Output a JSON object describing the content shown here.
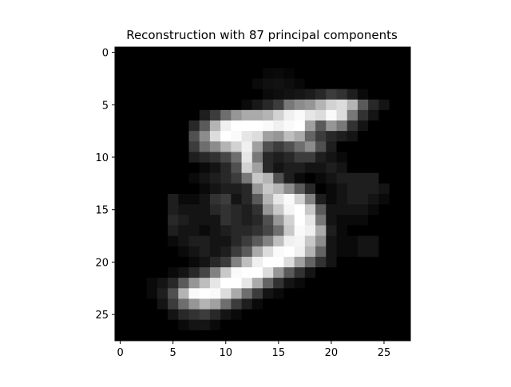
{
  "chart_data": {
    "type": "heatmap",
    "title": "Reconstruction with 87 principal components",
    "colormap": "gray",
    "x_ticks": [
      "0",
      "5",
      "10",
      "15",
      "20",
      "25"
    ],
    "y_ticks": [
      "0",
      "5",
      "10",
      "15",
      "20",
      "25"
    ],
    "x_tick_values": [
      0,
      5,
      10,
      15,
      20,
      25
    ],
    "y_tick_values": [
      0,
      5,
      10,
      15,
      20,
      25
    ],
    "xlim": [
      -0.5,
      27.5
    ],
    "ylim": [
      27.5,
      -0.5
    ],
    "grid": false,
    "rows": 28,
    "cols": 28,
    "value_range": [
      0,
      255
    ],
    "pixels": [
      [
        0,
        0,
        0,
        0,
        0,
        0,
        0,
        0,
        0,
        0,
        0,
        0,
        0,
        0,
        0,
        0,
        0,
        0,
        0,
        0,
        0,
        0,
        0,
        0,
        0,
        0,
        0,
        0
      ],
      [
        0,
        0,
        0,
        0,
        0,
        0,
        0,
        0,
        0,
        0,
        0,
        0,
        0,
        0,
        0,
        0,
        0,
        0,
        0,
        0,
        0,
        0,
        0,
        0,
        0,
        0,
        0,
        0
      ],
      [
        0,
        0,
        0,
        0,
        0,
        0,
        0,
        0,
        0,
        0,
        0,
        0,
        0,
        0,
        8,
        10,
        6,
        0,
        0,
        0,
        0,
        0,
        0,
        0,
        0,
        0,
        0,
        0
      ],
      [
        0,
        0,
        0,
        0,
        0,
        0,
        0,
        0,
        0,
        0,
        0,
        0,
        0,
        10,
        16,
        18,
        14,
        8,
        0,
        0,
        0,
        0,
        0,
        0,
        0,
        0,
        0,
        0
      ],
      [
        0,
        0,
        0,
        0,
        0,
        0,
        0,
        0,
        0,
        0,
        0,
        0,
        0,
        0,
        10,
        14,
        18,
        22,
        28,
        40,
        60,
        50,
        30,
        10,
        0,
        0,
        0,
        0
      ],
      [
        0,
        0,
        0,
        0,
        0,
        0,
        0,
        0,
        0,
        0,
        0,
        0,
        10,
        24,
        40,
        60,
        120,
        140,
        150,
        180,
        210,
        220,
        180,
        90,
        40,
        20,
        0,
        0
      ],
      [
        0,
        0,
        0,
        0,
        0,
        0,
        0,
        0,
        30,
        60,
        110,
        150,
        170,
        170,
        180,
        210,
        240,
        250,
        230,
        220,
        250,
        220,
        120,
        50,
        20,
        0,
        0,
        0
      ],
      [
        0,
        0,
        0,
        0,
        0,
        0,
        0,
        40,
        90,
        180,
        240,
        255,
        255,
        255,
        250,
        240,
        250,
        255,
        160,
        90,
        150,
        120,
        50,
        20,
        0,
        0,
        0,
        0
      ],
      [
        0,
        0,
        0,
        0,
        0,
        0,
        0,
        80,
        140,
        220,
        255,
        250,
        230,
        220,
        160,
        150,
        190,
        170,
        100,
        60,
        40,
        30,
        20,
        0,
        0,
        0,
        0,
        0
      ],
      [
        0,
        0,
        0,
        0,
        0,
        0,
        0,
        60,
        110,
        140,
        180,
        210,
        240,
        160,
        80,
        60,
        80,
        110,
        140,
        80,
        30,
        0,
        0,
        0,
        0,
        0,
        0,
        0
      ],
      [
        0,
        0,
        0,
        0,
        0,
        0,
        0,
        30,
        40,
        50,
        70,
        110,
        230,
        120,
        40,
        30,
        40,
        60,
        60,
        30,
        20,
        10,
        0,
        0,
        0,
        0,
        0,
        0
      ],
      [
        0,
        0,
        0,
        0,
        0,
        0,
        0,
        0,
        10,
        20,
        40,
        80,
        210,
        160,
        40,
        20,
        30,
        30,
        20,
        20,
        30,
        20,
        0,
        0,
        0,
        0,
        0,
        0
      ],
      [
        0,
        0,
        0,
        0,
        0,
        0,
        0,
        10,
        20,
        30,
        40,
        60,
        120,
        200,
        180,
        80,
        30,
        10,
        0,
        10,
        20,
        30,
        30,
        30,
        30,
        0,
        0,
        0
      ],
      [
        0,
        0,
        0,
        0,
        0,
        0,
        0,
        0,
        10,
        20,
        30,
        30,
        40,
        150,
        200,
        180,
        140,
        90,
        40,
        0,
        10,
        20,
        30,
        30,
        30,
        20,
        0,
        0
      ],
      [
        0,
        0,
        0,
        0,
        0,
        30,
        10,
        10,
        20,
        50,
        60,
        20,
        40,
        90,
        180,
        230,
        250,
        210,
        130,
        30,
        10,
        20,
        30,
        30,
        20,
        10,
        0,
        0
      ],
      [
        0,
        0,
        0,
        0,
        0,
        30,
        20,
        20,
        20,
        40,
        50,
        40,
        30,
        50,
        150,
        200,
        245,
        255,
        200,
        90,
        20,
        20,
        20,
        20,
        10,
        0,
        0,
        0
      ],
      [
        0,
        0,
        0,
        0,
        0,
        40,
        30,
        20,
        20,
        20,
        50,
        40,
        30,
        40,
        80,
        150,
        210,
        255,
        230,
        120,
        20,
        10,
        10,
        10,
        0,
        0,
        0,
        0
      ],
      [
        0,
        0,
        0,
        0,
        0,
        30,
        20,
        20,
        10,
        20,
        30,
        40,
        40,
        50,
        70,
        110,
        200,
        250,
        240,
        170,
        30,
        10,
        0,
        0,
        0,
        0,
        0,
        0
      ],
      [
        0,
        0,
        0,
        0,
        0,
        10,
        20,
        30,
        30,
        20,
        20,
        40,
        60,
        90,
        130,
        190,
        240,
        245,
        200,
        140,
        20,
        10,
        10,
        20,
        20,
        0,
        0,
        0
      ],
      [
        0,
        0,
        0,
        0,
        0,
        0,
        10,
        20,
        30,
        20,
        30,
        60,
        90,
        170,
        220,
        250,
        255,
        240,
        180,
        100,
        20,
        10,
        10,
        20,
        20,
        0,
        0,
        0
      ],
      [
        0,
        0,
        0,
        0,
        0,
        0,
        0,
        10,
        20,
        40,
        60,
        130,
        190,
        240,
        255,
        255,
        220,
        160,
        100,
        50,
        20,
        0,
        0,
        0,
        0,
        0,
        0,
        0
      ],
      [
        0,
        0,
        0,
        0,
        0,
        10,
        20,
        40,
        70,
        130,
        200,
        250,
        255,
        255,
        220,
        150,
        90,
        50,
        20,
        0,
        0,
        0,
        0,
        0,
        0,
        0,
        0,
        0
      ],
      [
        0,
        0,
        0,
        10,
        20,
        40,
        90,
        150,
        190,
        230,
        255,
        255,
        230,
        170,
        100,
        50,
        20,
        10,
        0,
        0,
        0,
        0,
        0,
        0,
        0,
        0,
        0,
        0
      ],
      [
        0,
        0,
        0,
        10,
        30,
        80,
        180,
        250,
        255,
        250,
        220,
        170,
        110,
        60,
        20,
        10,
        0,
        0,
        0,
        0,
        0,
        0,
        0,
        0,
        0,
        0,
        0,
        0
      ],
      [
        0,
        0,
        0,
        0,
        20,
        60,
        110,
        150,
        180,
        160,
        110,
        60,
        30,
        10,
        0,
        0,
        0,
        0,
        0,
        0,
        0,
        0,
        0,
        0,
        0,
        0,
        0,
        0
      ],
      [
        0,
        0,
        0,
        0,
        0,
        20,
        40,
        50,
        60,
        40,
        20,
        10,
        0,
        0,
        0,
        0,
        0,
        0,
        0,
        0,
        0,
        0,
        0,
        0,
        0,
        0,
        0,
        0
      ],
      [
        0,
        0,
        0,
        0,
        0,
        0,
        10,
        20,
        20,
        10,
        0,
        0,
        0,
        0,
        0,
        0,
        0,
        0,
        0,
        0,
        0,
        0,
        0,
        0,
        0,
        0,
        0,
        0
      ],
      [
        0,
        0,
        0,
        0,
        0,
        0,
        0,
        0,
        0,
        0,
        0,
        0,
        0,
        0,
        0,
        0,
        0,
        0,
        0,
        0,
        0,
        0,
        0,
        0,
        0,
        0,
        0,
        0
      ]
    ]
  }
}
